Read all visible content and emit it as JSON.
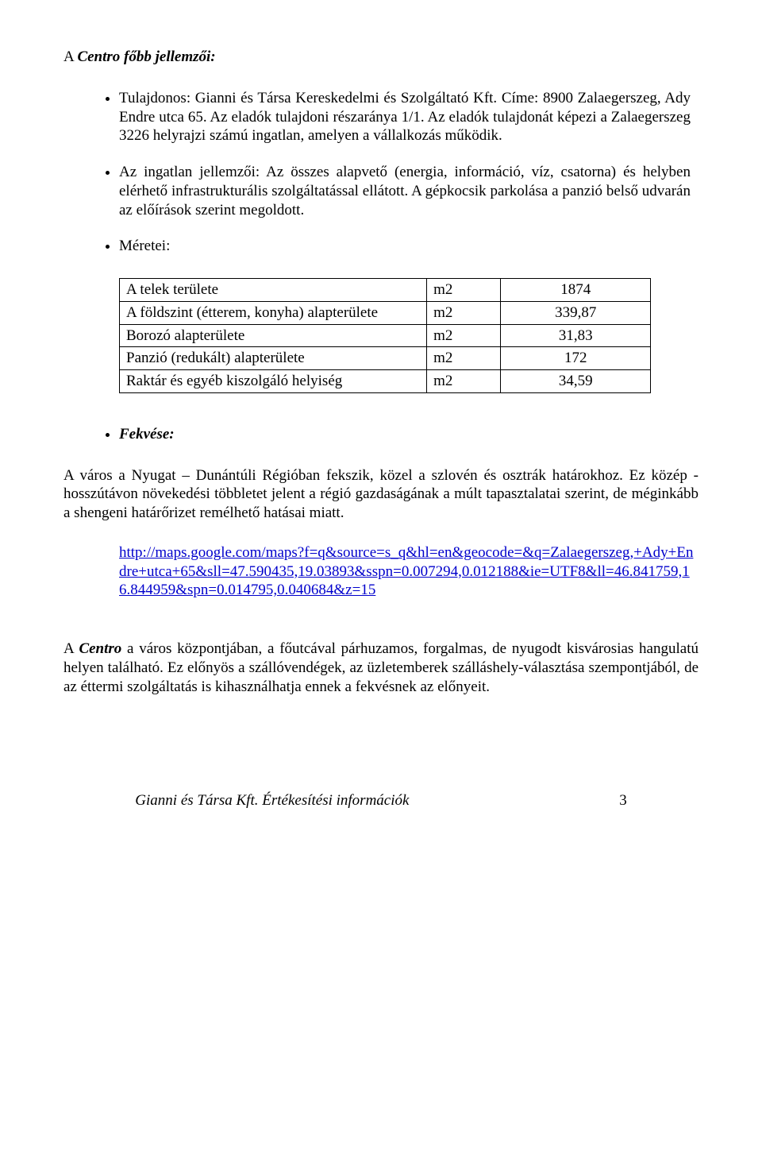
{
  "header": {
    "brand": "Centro",
    "title_prefix": "A ",
    "title_suffix": " főbb jellemzői:"
  },
  "bullets": {
    "owner": "Tulajdonos: Gianni és Társa Kereskedelmi és Szolgáltató Kft. Címe: 8900 Zalaegerszeg, Ady Endre utca 65. Az eladók tulajdoni részaránya 1/1. Az eladók tulajdonát képezi a Zalaegerszeg 3226 helyrajzi számú ingatlan, amelyen a vállalkozás működik.",
    "features": "Az ingatlan jellemzői: Az összes alapvető (energia, információ, víz, csatorna) és helyben elérhető infrastrukturális szolgáltatással ellátott. A gépkocsik parkolása a panzió belső udvarán az előírások szerint megoldott.",
    "sizes_label": "Méretei:",
    "fekvese_label": "Fekvése:"
  },
  "table": {
    "rows": [
      {
        "name": "A telek területe",
        "unit": "m2",
        "value": "1874"
      },
      {
        "name": "A földszint (étterem, konyha) alapterülete",
        "unit": "m2",
        "value": "339,87"
      },
      {
        "name": "Borozó alapterülete",
        "unit": "m2",
        "value": "31,83"
      },
      {
        "name": "Panzió (redukált) alapterülete",
        "unit": "m2",
        "value": "172"
      },
      {
        "name": "Raktár és egyéb kiszolgáló helyiség",
        "unit": "m2",
        "value": "34,59"
      }
    ]
  },
  "fekvese_para": "A város a Nyugat – Dunántúli Régióban fekszik, közel a szlovén és osztrák határokhoz. Ez közép - hosszútávon növekedési többletet jelent a régió gazdaságának a múlt tapasztalatai szerint, de méginkább a shengeni határőrizet remélhető hatásai miatt.",
  "link": {
    "text": "http://maps.google.com/maps?f=q&source=s_q&hl=en&geocode=&q=Zalaegerszeg,+Ady+Endre+utca+65&sll=47.590435,19.03893&sspn=0.007294,0.012188&ie=UTF8&ll=46.841759,16.844959&spn=0.014795,0.040684&z=15"
  },
  "closing": {
    "prefix": "A ",
    "brand": "Centro",
    "text": " a város központjában, a főutcával párhuzamos, forgalmas, de nyugodt kisvárosias hangulatú helyen található. Ez előnyös a szállóvendégek, az üzletemberek szálláshely-választása szempontjából, de az éttermi szolgáltatás is kihasználhatja ennek a fekvésnek az előnyeit."
  },
  "footer": {
    "text": "Gianni és Társa Kft. Értékesítési információk",
    "page": "3"
  }
}
